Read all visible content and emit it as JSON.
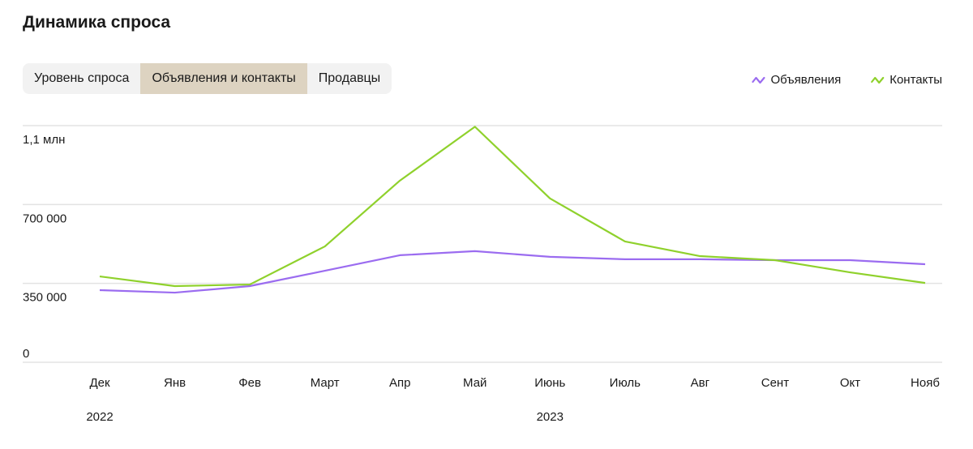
{
  "header": {
    "title": "Динамика спроса"
  },
  "tabs": {
    "items": [
      "Уровень спроса",
      "Объявления и контакты",
      "Продавцы"
    ],
    "selected": 1
  },
  "chart_data": {
    "type": "line",
    "categories": [
      "Дек",
      "Янв",
      "Фев",
      "Март",
      "Апр",
      "Май",
      "Июнь",
      "Июль",
      "Авг",
      "Сент",
      "Окт",
      "Нояб"
    ],
    "x_groups": [
      "2022",
      null,
      null,
      null,
      null,
      null,
      "2023",
      null,
      null,
      null,
      null,
      null
    ],
    "series": [
      {
        "name": "Объявления",
        "color": "#9b6cf0",
        "values": [
          320000,
          309000,
          338000,
          406000,
          475000,
          493000,
          468000,
          457000,
          457000,
          453000,
          453000,
          435000
        ]
      },
      {
        "name": "Контакты",
        "color": "#8fd12c",
        "values": [
          381000,
          338000,
          345000,
          514000,
          806000,
          1045000,
          727000,
          536000,
          471000,
          453000,
          399000,
          352000
        ]
      }
    ],
    "ylim": [
      0,
      1050000
    ],
    "yticks": [
      0,
      {
        "value": 350000,
        "label": "350 000"
      },
      {
        "value": 700000,
        "label": "700 000"
      },
      {
        "value": 1050000,
        "label": "1,1 млн"
      }
    ],
    "grid": true,
    "legend": "top-right"
  }
}
